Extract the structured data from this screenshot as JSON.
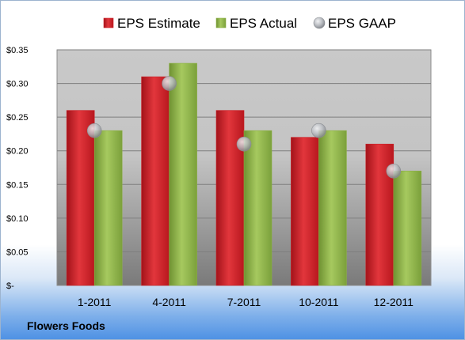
{
  "chart_data": {
    "type": "bar",
    "categories": [
      "1-2011",
      "4-2011",
      "7-2011",
      "10-2011",
      "12-2011"
    ],
    "series": [
      {
        "name": "EPS Estimate",
        "values": [
          0.26,
          0.31,
          0.26,
          0.22,
          0.21
        ],
        "color": "#cc1f26",
        "kind": "bar"
      },
      {
        "name": "EPS Actual",
        "values": [
          0.23,
          0.33,
          0.23,
          0.23,
          0.17
        ],
        "color": "#8bb043",
        "kind": "bar"
      },
      {
        "name": "EPS GAAP",
        "values": [
          0.23,
          0.3,
          0.21,
          0.23,
          0.17
        ],
        "color": "#b5b8bd",
        "kind": "marker"
      }
    ],
    "ylim": [
      0,
      0.35
    ],
    "yticks": [
      0,
      0.05,
      0.1,
      0.15,
      0.2,
      0.25,
      0.3,
      0.35
    ],
    "ytick_labels": [
      "$-",
      "$0.05",
      "$0.10",
      "$0.15",
      "$0.20",
      "$0.25",
      "$0.30",
      "$0.35"
    ],
    "grid": true,
    "legend_position": "top"
  },
  "footer": {
    "company": "Flowers Foods"
  }
}
